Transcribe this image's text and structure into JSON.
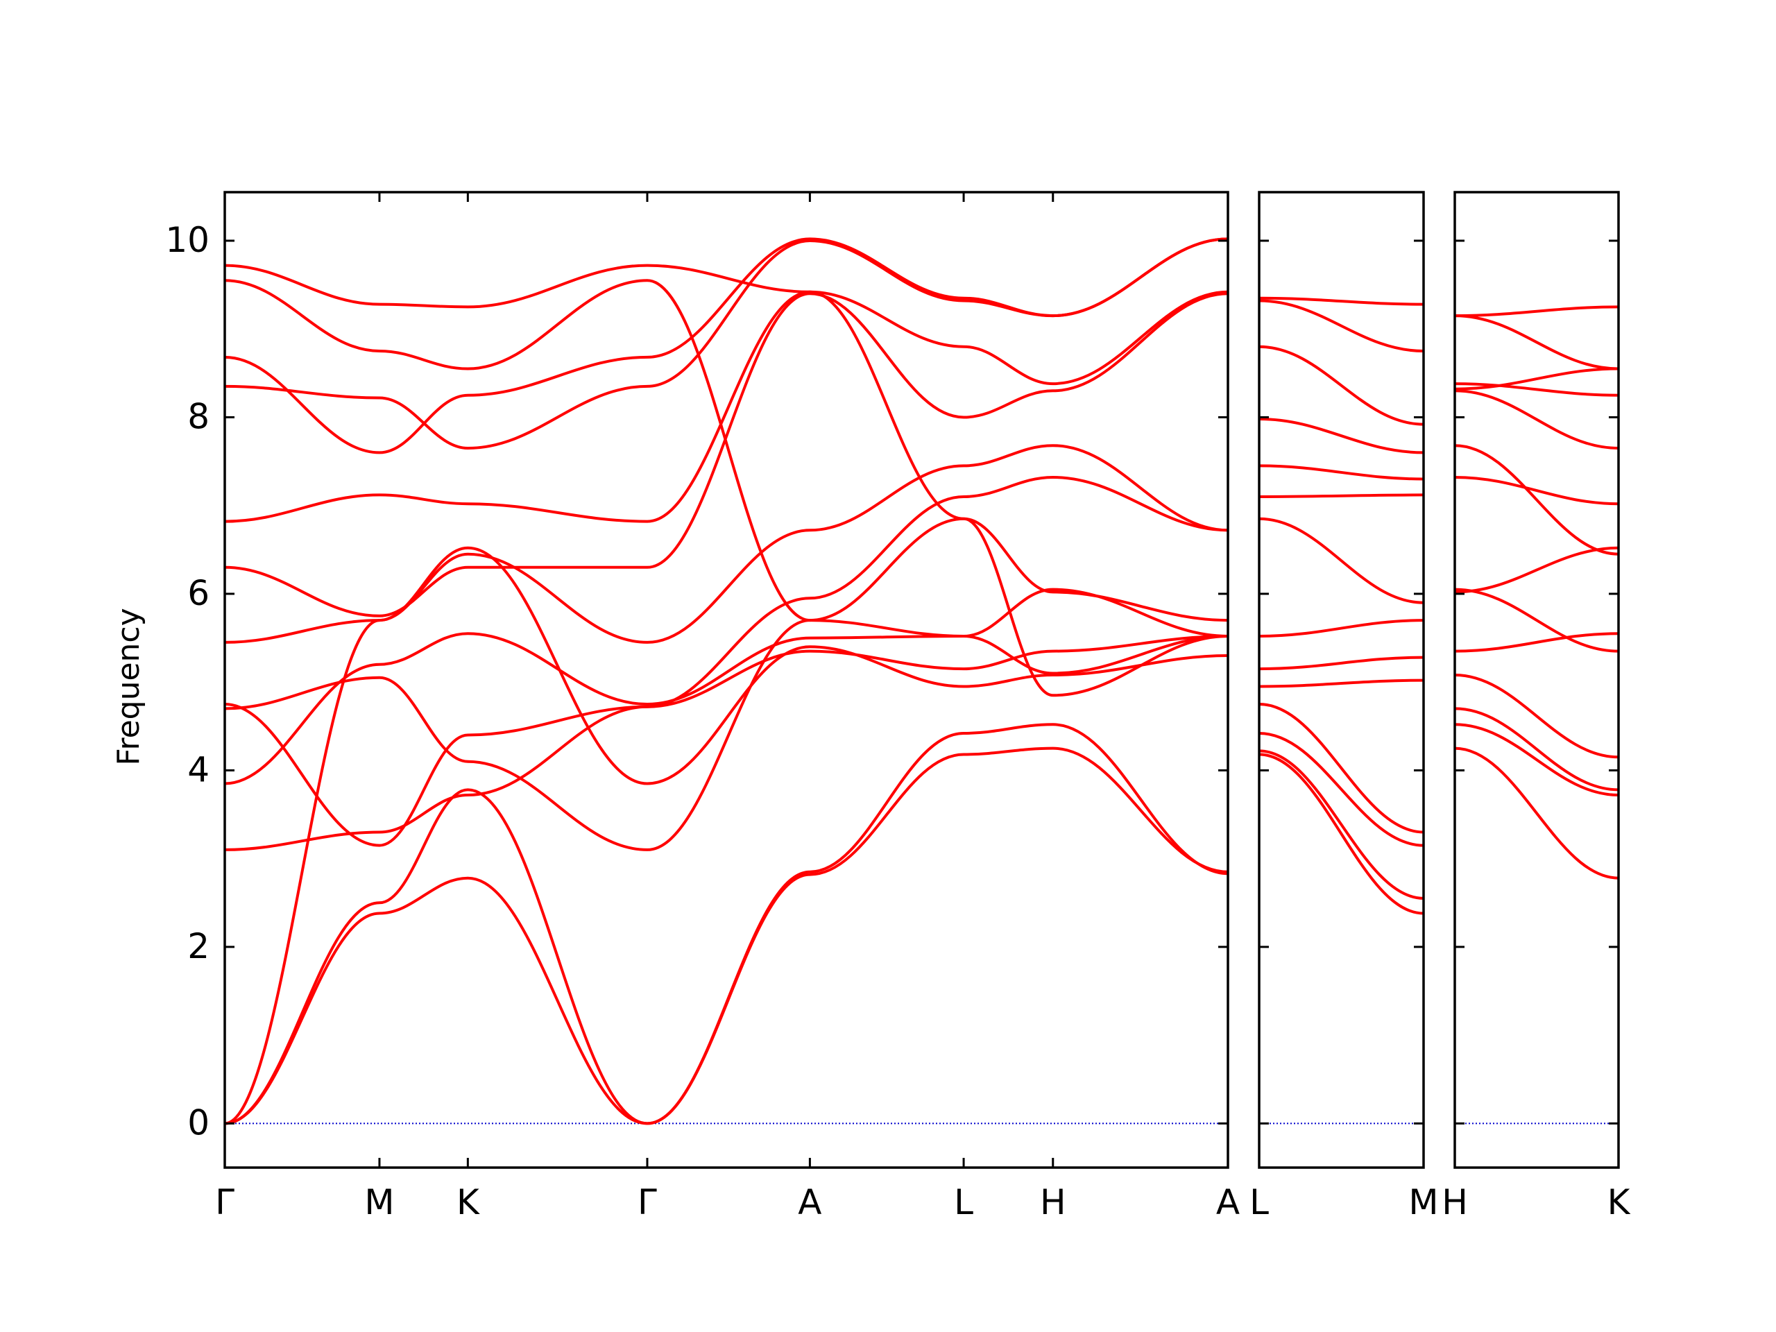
{
  "chart_data": {
    "type": "line",
    "title": "",
    "xlabel": "",
    "ylabel": "Frequency",
    "ylim": [
      -0.5,
      10.55
    ],
    "yticks": [
      0,
      2,
      4,
      6,
      8,
      10
    ],
    "grid": false,
    "legend": "none",
    "colors": {
      "band": "#ff0000",
      "zero_line": "#0000cc",
      "axes": "#000000"
    },
    "panels": [
      {
        "xlim": [
          0,
          11.35
        ],
        "ticks": [
          {
            "x": 0.0,
            "label": "Γ"
          },
          {
            "x": 1.75,
            "label": "M"
          },
          {
            "x": 2.75,
            "label": "K"
          },
          {
            "x": 4.78,
            "label": "Γ"
          },
          {
            "x": 6.62,
            "label": "A"
          },
          {
            "x": 8.36,
            "label": "L"
          },
          {
            "x": 9.37,
            "label": "H"
          },
          {
            "x": 11.35,
            "label": "A"
          }
        ],
        "bands": [
          [
            [
              0,
              0
            ],
            [
              1.75,
              2.38
            ],
            [
              2.75,
              2.78
            ],
            [
              4.78,
              0
            ],
            [
              6.62,
              2.82
            ],
            [
              8.36,
              4.18
            ],
            [
              9.37,
              4.25
            ],
            [
              11.35,
              2.85
            ]
          ],
          [
            [
              0,
              0
            ],
            [
              1.75,
              2.5
            ],
            [
              2.75,
              3.78
            ],
            [
              4.78,
              0
            ],
            [
              6.62,
              2.85
            ],
            [
              8.36,
              4.42
            ],
            [
              9.37,
              4.52
            ],
            [
              11.35,
              2.83
            ]
          ],
          [
            [
              0,
              0
            ],
            [
              1.75,
              5.7
            ],
            [
              2.75,
              6.52
            ],
            [
              4.78,
              3.85
            ],
            [
              6.62,
              5.4
            ],
            [
              8.36,
              4.95
            ],
            [
              9.37,
              5.08
            ],
            [
              11.35,
              5.3
            ]
          ],
          [
            [
              0,
              3.1
            ],
            [
              1.75,
              3.3
            ],
            [
              2.75,
              3.72
            ],
            [
              4.78,
              4.72
            ],
            [
              6.62,
              5.35
            ],
            [
              8.36,
              5.15
            ],
            [
              9.37,
              5.35
            ],
            [
              11.35,
              5.52
            ]
          ],
          [
            [
              0,
              3.85
            ],
            [
              1.75,
              5.2
            ],
            [
              2.75,
              5.55
            ],
            [
              4.78,
              4.75
            ],
            [
              6.62,
              5.5
            ],
            [
              8.36,
              5.52
            ],
            [
              9.37,
              6.05
            ],
            [
              11.35,
              5.52
            ]
          ],
          [
            [
              0,
              4.7
            ],
            [
              1.75,
              5.05
            ],
            [
              2.75,
              4.1
            ],
            [
              4.78,
              3.1
            ],
            [
              6.62,
              5.7
            ],
            [
              8.36,
              6.85
            ],
            [
              9.37,
              6.02
            ],
            [
              11.35,
              5.7
            ]
          ],
          [
            [
              0,
              4.75
            ],
            [
              1.75,
              3.15
            ],
            [
              2.75,
              4.4
            ],
            [
              4.78,
              4.72
            ],
            [
              6.62,
              5.95
            ],
            [
              8.36,
              7.1
            ],
            [
              9.37,
              7.32
            ],
            [
              11.35,
              6.72
            ]
          ],
          [
            [
              0,
              5.45
            ],
            [
              1.75,
              5.7
            ],
            [
              2.75,
              6.45
            ],
            [
              4.78,
              5.45
            ],
            [
              6.62,
              6.72
            ],
            [
              8.36,
              7.45
            ],
            [
              9.37,
              7.68
            ],
            [
              11.35,
              6.72
            ]
          ],
          [
            [
              0,
              6.3
            ],
            [
              1.75,
              5.75
            ],
            [
              2.75,
              6.3
            ],
            [
              4.78,
              6.3
            ],
            [
              6.62,
              9.4
            ],
            [
              8.36,
              8.0
            ],
            [
              9.37,
              8.3
            ],
            [
              11.35,
              9.4
            ]
          ],
          [
            [
              0,
              6.82
            ],
            [
              1.75,
              7.12
            ],
            [
              2.75,
              7.02
            ],
            [
              4.78,
              6.82
            ],
            [
              6.62,
              9.42
            ],
            [
              8.36,
              8.8
            ],
            [
              9.37,
              8.38
            ],
            [
              11.35,
              9.42
            ]
          ],
          [
            [
              0,
              8.35
            ],
            [
              1.75,
              8.22
            ],
            [
              2.75,
              7.65
            ],
            [
              4.78,
              8.35
            ],
            [
              6.62,
              10.0
            ],
            [
              8.36,
              9.32
            ],
            [
              9.37,
              9.15
            ],
            [
              11.35,
              10.02
            ]
          ],
          [
            [
              0,
              8.68
            ],
            [
              1.75,
              7.6
            ],
            [
              2.75,
              8.25
            ],
            [
              4.78,
              8.68
            ],
            [
              6.62,
              10.02
            ],
            [
              8.36,
              9.35
            ],
            [
              9.37,
              9.15
            ],
            [
              11.35,
              10.02
            ]
          ],
          [
            [
              0,
              9.55
            ],
            [
              1.75,
              8.75
            ],
            [
              2.75,
              8.55
            ],
            [
              4.78,
              9.55
            ],
            [
              6.62,
              5.7
            ],
            [
              8.36,
              5.52
            ],
            [
              9.37,
              5.1
            ],
            [
              11.35,
              5.52
            ]
          ],
          [
            [
              0,
              9.72
            ],
            [
              1.75,
              9.28
            ],
            [
              2.75,
              9.25
            ],
            [
              4.78,
              9.72
            ],
            [
              6.62,
              9.42
            ],
            [
              8.36,
              6.85
            ],
            [
              9.37,
              4.85
            ],
            [
              11.35,
              5.52
            ]
          ]
        ]
      },
      {
        "xlim": [
          0,
          1.0
        ],
        "ticks": [
          {
            "x": 0.0,
            "label": "L"
          },
          {
            "x": 1.0,
            "label": "M"
          }
        ],
        "bands": [
          [
            [
              0,
              4.18
            ],
            [
              1.0,
              2.38
            ]
          ],
          [
            [
              0,
              4.22
            ],
            [
              1.0,
              2.55
            ]
          ],
          [
            [
              0,
              4.42
            ],
            [
              1.0,
              3.15
            ]
          ],
          [
            [
              0,
              4.75
            ],
            [
              1.0,
              3.3
            ]
          ],
          [
            [
              0,
              4.95
            ],
            [
              1.0,
              5.02
            ]
          ],
          [
            [
              0,
              5.15
            ],
            [
              1.0,
              5.28
            ]
          ],
          [
            [
              0,
              5.52
            ],
            [
              1.0,
              5.7
            ]
          ],
          [
            [
              0,
              6.85
            ],
            [
              1.0,
              5.9
            ]
          ],
          [
            [
              0,
              7.1
            ],
            [
              1.0,
              7.12
            ]
          ],
          [
            [
              0,
              7.45
            ],
            [
              1.0,
              7.3
            ]
          ],
          [
            [
              0,
              7.98
            ],
            [
              1.0,
              7.6
            ]
          ],
          [
            [
              0,
              8.8
            ],
            [
              1.0,
              7.92
            ]
          ],
          [
            [
              0,
              9.32
            ],
            [
              1.0,
              8.75
            ]
          ],
          [
            [
              0,
              9.35
            ],
            [
              1.0,
              9.28
            ]
          ]
        ]
      },
      {
        "xlim": [
          0,
          1.0
        ],
        "ticks": [
          {
            "x": 0.0,
            "label": "H"
          },
          {
            "x": 1.0,
            "label": "K"
          }
        ],
        "bands": [
          [
            [
              0,
              4.25
            ],
            [
              1.0,
              2.78
            ]
          ],
          [
            [
              0,
              4.52
            ],
            [
              1.0,
              3.72
            ]
          ],
          [
            [
              0,
              4.7
            ],
            [
              1.0,
              3.78
            ]
          ],
          [
            [
              0,
              5.08
            ],
            [
              1.0,
              4.15
            ]
          ],
          [
            [
              0,
              5.35
            ],
            [
              1.0,
              5.55
            ]
          ],
          [
            [
              0,
              6.05
            ],
            [
              1.0,
              5.35
            ]
          ],
          [
            [
              0,
              6.02
            ],
            [
              1.0,
              6.52
            ]
          ],
          [
            [
              0,
              7.32
            ],
            [
              1.0,
              7.02
            ]
          ],
          [
            [
              0,
              7.68
            ],
            [
              1.0,
              6.45
            ]
          ],
          [
            [
              0,
              8.3
            ],
            [
              1.0,
              7.65
            ]
          ],
          [
            [
              0,
              8.38
            ],
            [
              1.0,
              8.25
            ]
          ],
          [
            [
              0,
              8.32
            ],
            [
              1.0,
              8.55
            ]
          ],
          [
            [
              0,
              9.15
            ],
            [
              1.0,
              9.25
            ]
          ],
          [
            [
              0,
              9.15
            ],
            [
              1.0,
              8.55
            ]
          ]
        ]
      }
    ]
  }
}
